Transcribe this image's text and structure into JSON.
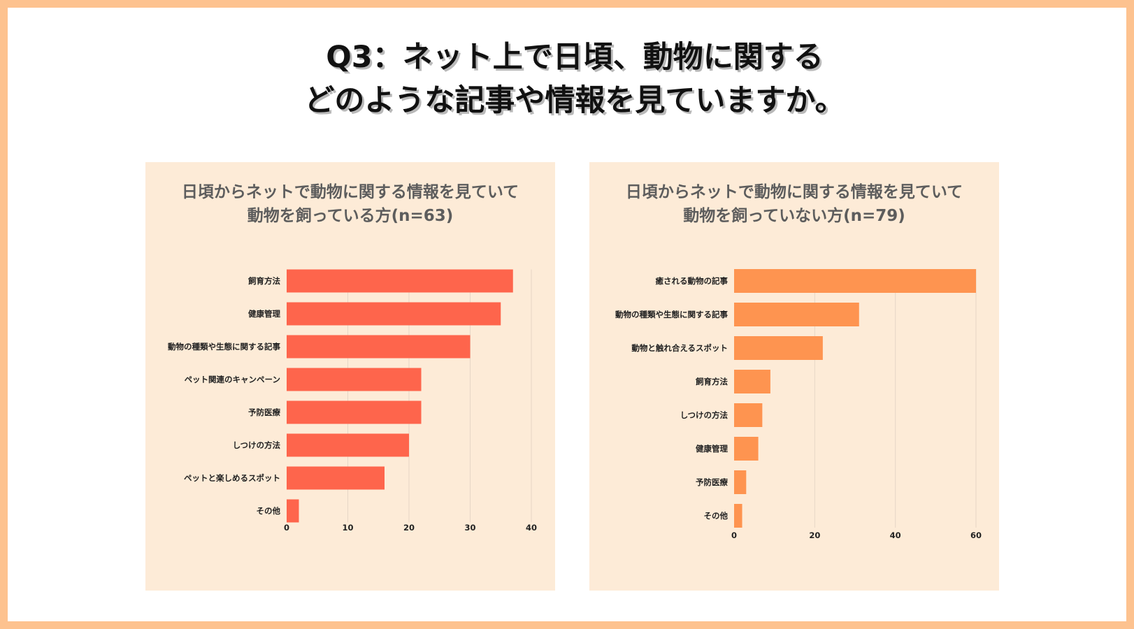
{
  "page": {
    "title_line1": "Q3：ネット上で日頃、動物に関する",
    "title_line2": "どのような記事や情報を見ていますか。"
  },
  "colors": {
    "border": "#fdc28f",
    "panel_bg": "#fdebd7",
    "bar_left": "#fe654c",
    "bar_right": "#fe9450",
    "grid": "#e6d6c6"
  },
  "chart_data": [
    {
      "type": "bar",
      "orientation": "horizontal",
      "title_line1": "日頃からネットで動物に関する情報を見ていて",
      "title_line2": "動物を飼っている方(n=63)",
      "categories": [
        "飼育方法",
        "健康管理",
        "動物の種類や生態に関する記事",
        "ペット関連のキャンペーン",
        "予防医療",
        "しつけの方法",
        "ペットと楽しめるスポット",
        "その他"
      ],
      "values": [
        37,
        35,
        30,
        22,
        22,
        20,
        16,
        2
      ],
      "xlim": [
        0,
        40
      ],
      "xticks": [
        0,
        10,
        20,
        30,
        40
      ],
      "grid": true
    },
    {
      "type": "bar",
      "orientation": "horizontal",
      "title_line1": "日頃からネットで動物に関する情報を見ていて",
      "title_line2": "動物を飼っていない方(n=79)",
      "categories": [
        "癒される動物の記事",
        "動物の種類や生態に関する記事",
        "動物と触れ合えるスポット",
        "飼育方法",
        "しつけの方法",
        "健康管理",
        "予防医療",
        "その他"
      ],
      "values": [
        60,
        31,
        22,
        9,
        7,
        6,
        3,
        2
      ],
      "xlim": [
        0,
        60
      ],
      "xticks": [
        0,
        20,
        40,
        60
      ],
      "grid": true
    }
  ]
}
